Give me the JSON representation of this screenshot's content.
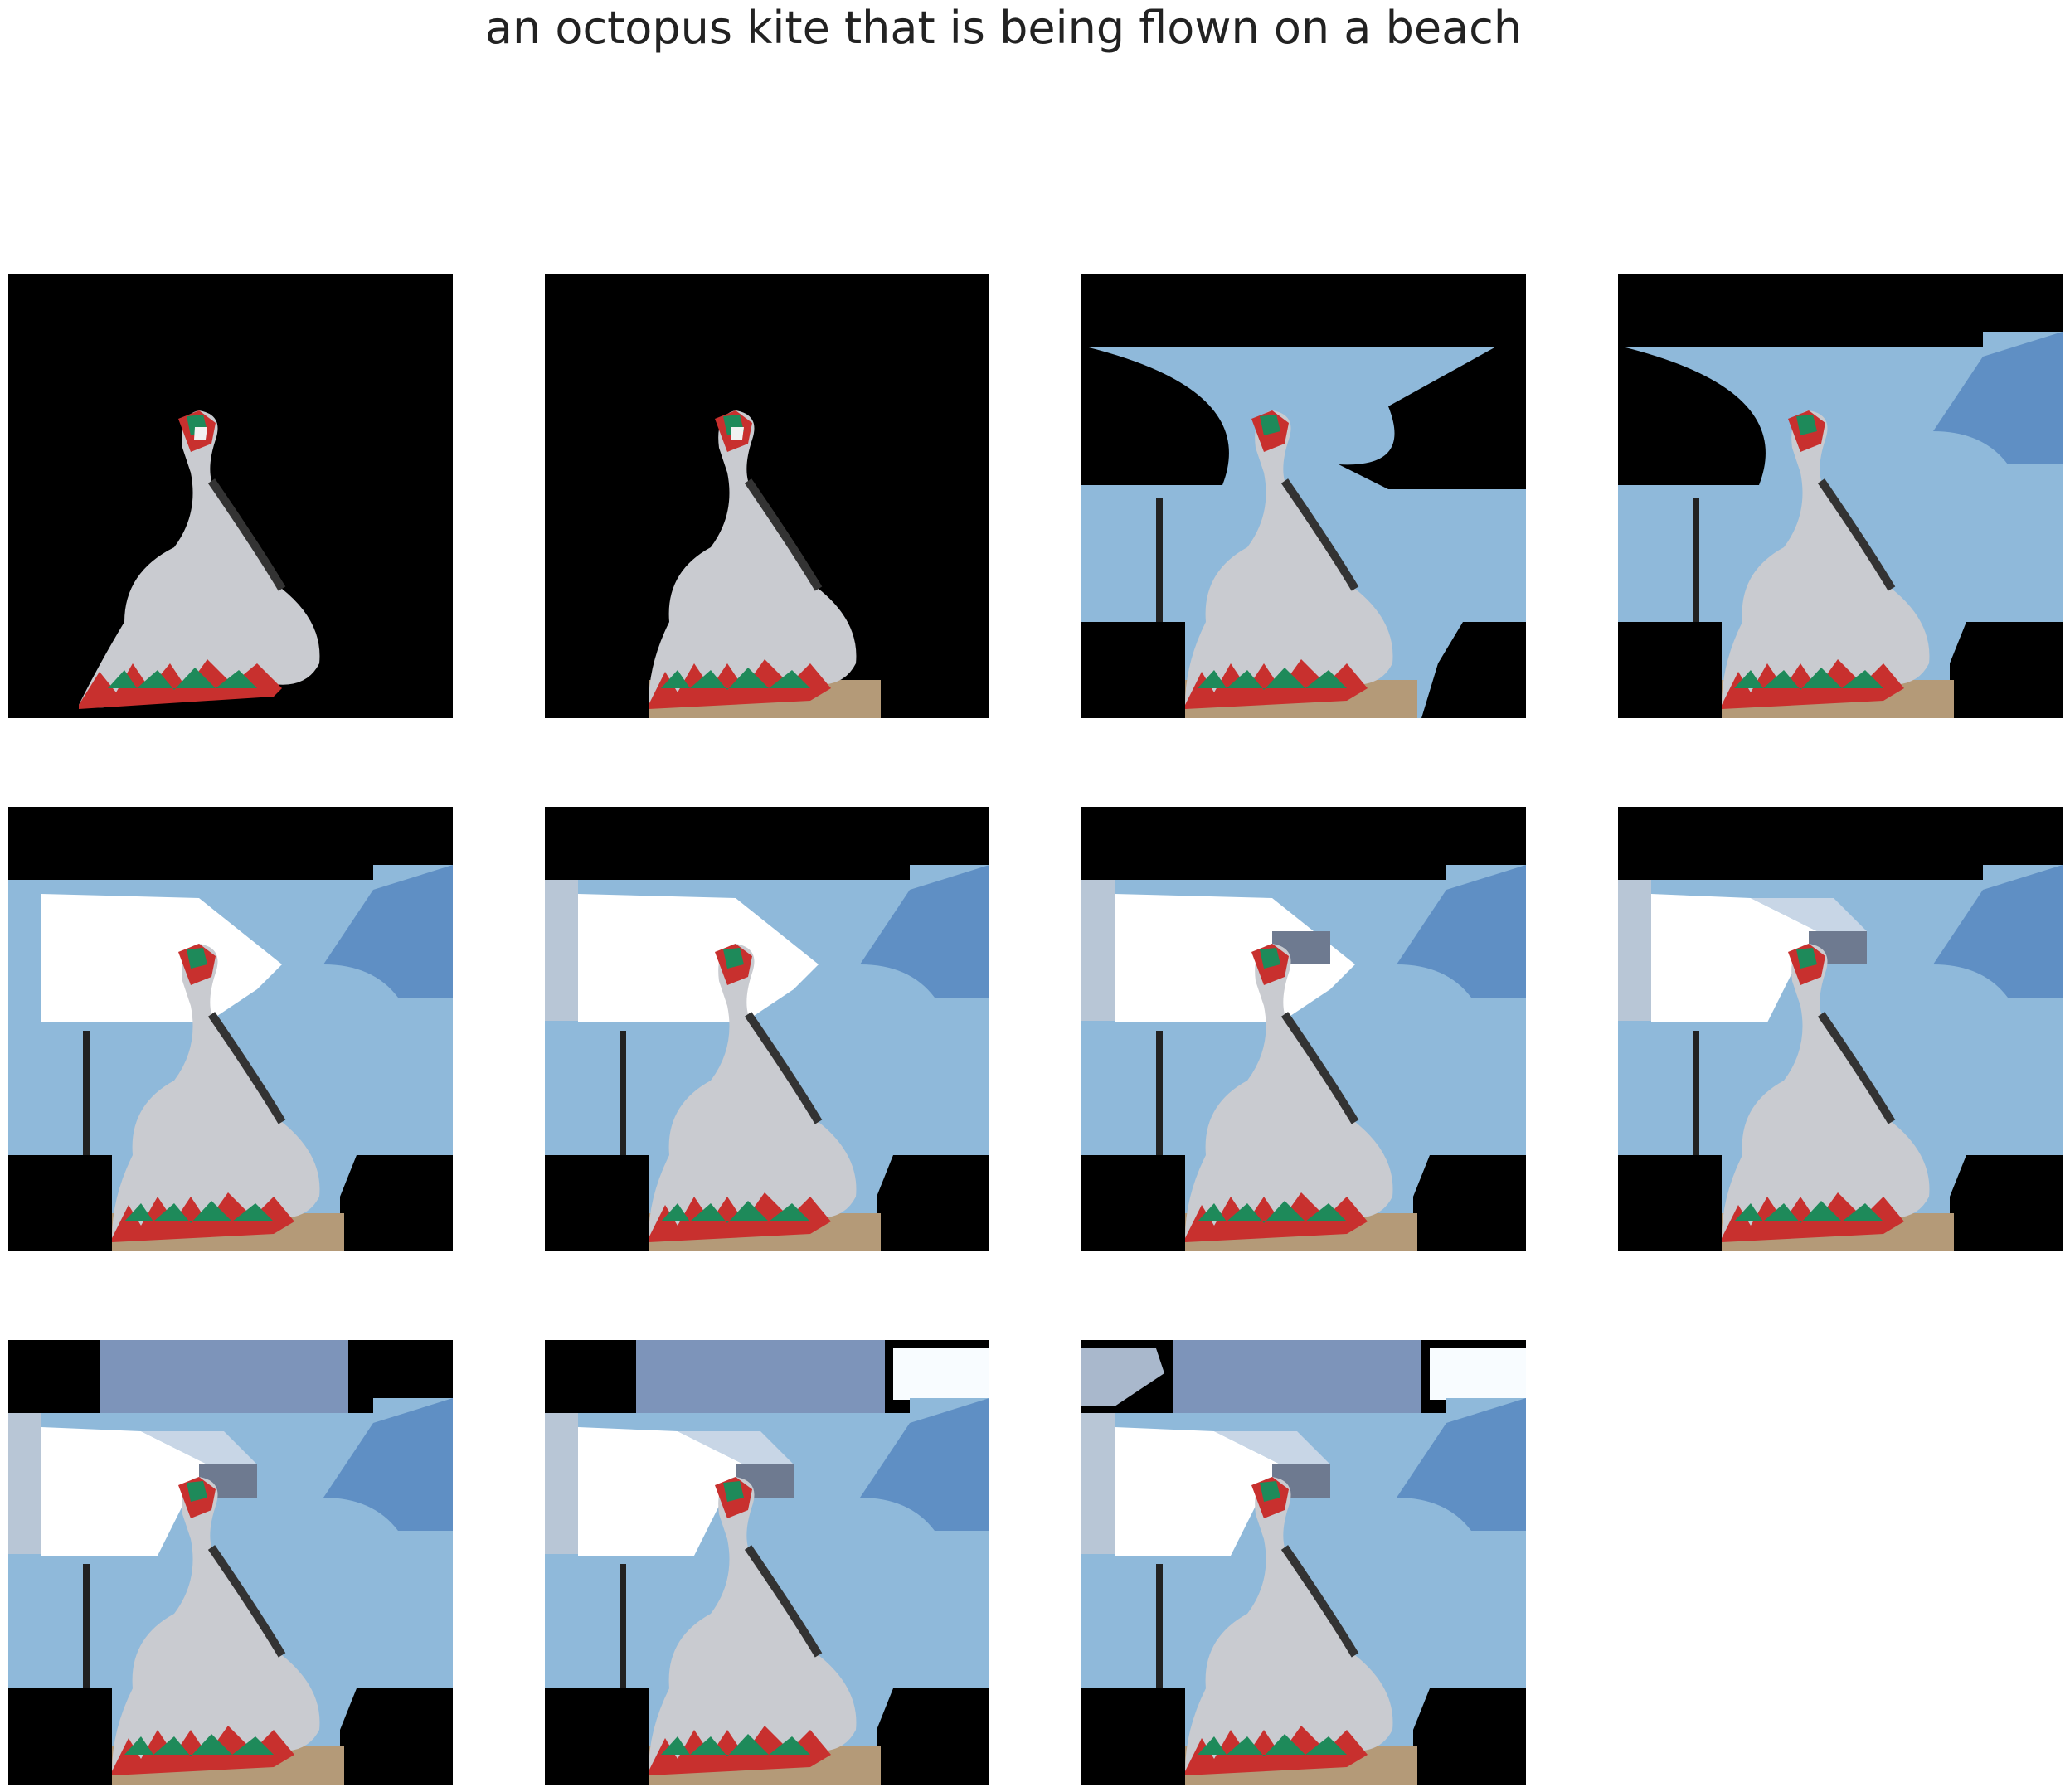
{
  "title": "an octopus kite that is being flown on a beach",
  "grid": {
    "rows": 3,
    "columns": 4,
    "panel_count": 11
  },
  "colors": {
    "mask": "#000000",
    "sky": "#8fb9da",
    "sky_deep": "#5f8fc4",
    "kite_body": "#c9cbd0",
    "stripe_red": "#c8302e",
    "stripe_green": "#1e8a5a",
    "stripe_white": "#f2f2f2",
    "sand": "#b49a78",
    "cloud": "#ffffff"
  },
  "panels": [
    {
      "step": 1,
      "regions": [
        "kite"
      ]
    },
    {
      "step": 2,
      "regions": [
        "kite",
        "sand"
      ]
    },
    {
      "step": 3,
      "regions": [
        "kite",
        "sand",
        "sky",
        "pole"
      ]
    },
    {
      "step": 4,
      "regions": [
        "kite",
        "sand",
        "sky",
        "pole",
        "sky-right"
      ]
    },
    {
      "step": 5,
      "regions": [
        "kite",
        "sand",
        "sky",
        "pole",
        "sky-right",
        "cloud"
      ]
    },
    {
      "step": 6,
      "regions": [
        "kite",
        "sand",
        "sky",
        "pole",
        "sky-right",
        "cloud",
        "left-edge"
      ]
    },
    {
      "step": 7,
      "regions": [
        "kite",
        "sand",
        "sky",
        "pole",
        "sky-right",
        "cloud",
        "left-edge",
        "texture"
      ]
    },
    {
      "step": 8,
      "regions": [
        "kite",
        "sand",
        "sky",
        "pole",
        "sky-right",
        "cloud",
        "left-edge",
        "texture",
        "cloud-gap"
      ]
    },
    {
      "step": 9,
      "regions": [
        "kite",
        "sand",
        "sky",
        "pole",
        "sky-right",
        "cloud",
        "left-edge",
        "texture",
        "cloud-gap",
        "top-band"
      ]
    },
    {
      "step": 10,
      "regions": [
        "kite",
        "sand",
        "sky",
        "pole",
        "sky-right",
        "cloud",
        "left-edge",
        "texture",
        "cloud-gap",
        "top-band",
        "top-right-white"
      ]
    },
    {
      "step": 11,
      "regions": [
        "kite",
        "sand",
        "sky",
        "pole",
        "sky-right",
        "cloud",
        "left-edge",
        "texture",
        "cloud-gap",
        "top-band",
        "top-right-white",
        "top-left"
      ]
    }
  ]
}
